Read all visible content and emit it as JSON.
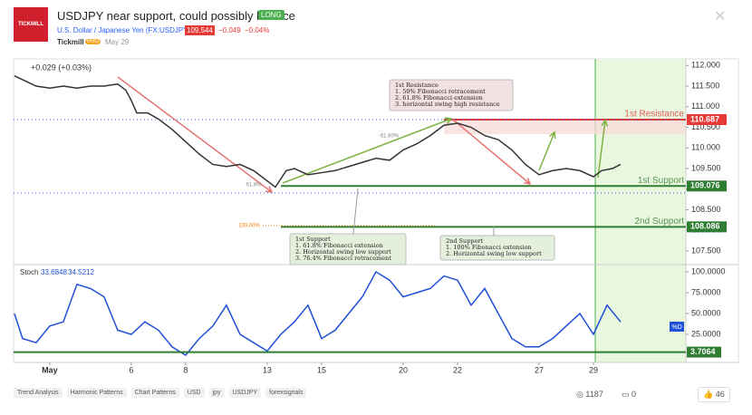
{
  "header": {
    "logo": "TICKMILL",
    "title": "USDJPY near support, could possibly bounce",
    "badge": "LONG",
    "symbol": "U.S. Dollar / Japanese Yen (FX:USDJPY)",
    "price": "109.544",
    "change": "−0.049",
    "change_pct": "−0.04%",
    "author": "Tickmill",
    "author_badge": "PRO",
    "date": "May 29"
  },
  "chart_data": [
    {
      "type": "line",
      "change_label": "+0.029 (+0.03%)",
      "color": "#333333",
      "x": [
        -1.3,
        -0.5,
        0,
        0.5,
        1,
        1.5,
        2,
        2.5,
        2.8,
        3,
        3.2,
        3.6,
        4,
        4.5,
        5,
        5.5,
        6,
        6.5,
        7,
        7.5,
        8,
        8.3,
        8.7,
        9,
        9.5,
        10,
        10.5,
        11,
        12,
        12.5,
        13,
        13.5,
        14,
        14.5,
        15,
        15.5,
        16,
        16.5,
        17,
        17.5,
        18,
        18.5,
        19,
        19.5,
        20,
        20.3,
        20.7,
        21
      ],
      "values": [
        111.75,
        111.5,
        111.45,
        111.5,
        111.45,
        111.5,
        111.5,
        111.55,
        111.4,
        111.15,
        110.85,
        110.85,
        110.7,
        110.45,
        110.15,
        109.85,
        109.6,
        109.55,
        109.6,
        109.45,
        109.2,
        109.05,
        109.45,
        109.5,
        109.35,
        109.4,
        109.45,
        109.55,
        109.75,
        109.7,
        109.95,
        110.1,
        110.3,
        110.55,
        110.6,
        110.5,
        110.3,
        110.2,
        109.95,
        109.6,
        109.35,
        109.45,
        109.5,
        109.45,
        109.3,
        109.45,
        109.5,
        109.6
      ],
      "xlim": [
        -1.33,
        23.4
      ],
      "ylim": [
        107.17,
        112.16
      ],
      "xticks": [
        {
          "value": 0,
          "label": "May"
        },
        {
          "value": 3,
          "label": "6"
        },
        {
          "value": 5,
          "label": "8"
        },
        {
          "value": 8,
          "label": "13"
        },
        {
          "value": 10,
          "label": "15"
        },
        {
          "value": 13,
          "label": "20"
        },
        {
          "value": 15,
          "label": "22"
        },
        {
          "value": 18,
          "label": "27"
        },
        {
          "value": 20,
          "label": "29"
        }
      ],
      "yticks": [
        {
          "value": 112,
          "label": "112.000"
        },
        {
          "value": 111.5,
          "label": "111.500"
        },
        {
          "value": 111,
          "label": "111.000"
        },
        {
          "value": 110.5,
          "label": "110.500"
        },
        {
          "value": 110,
          "label": "110.000"
        },
        {
          "value": 109.5,
          "label": "109.500"
        },
        {
          "value": 109,
          "label": "109.000"
        },
        {
          "value": 108.5,
          "label": "108.500"
        },
        {
          "value": 108,
          "label": "108.000"
        },
        {
          "value": 107.5,
          "label": "107.500"
        }
      ],
      "levels": [
        {
          "name": "1st Resistance",
          "value": 110.687,
          "value_label": "110.687",
          "color": "#e53935"
        },
        {
          "name": "1st Support",
          "value": 109.076,
          "value_label": "109.076",
          "color": "#2e7d32"
        },
        {
          "name": "2nd Support",
          "value": 108.086,
          "value_label": "108.086",
          "color": "#2e7d32"
        }
      ],
      "fib_labels": [
        "61.80%",
        "61.8%",
        "100.00%"
      ],
      "annotations": [
        {
          "lines": [
            "1st Resistance",
            "1. 50% Fibonacci retracement",
            "2. 61.8% Fibonacci extension",
            "3. horizontal swing high resistance"
          ]
        },
        {
          "lines": [
            "1st Support",
            "1. 61.8% Fibonacci extension",
            "2. Horizontal swing low support",
            "3. 76.4% Fibonacci retracement"
          ]
        },
        {
          "lines": [
            "2nd Support",
            "1. 100% Fibonacci extension",
            "2. Horizontal swing low support"
          ]
        }
      ]
    },
    {
      "type": "line",
      "title": "Stoch",
      "readings": [
        "33.6848",
        "34.5212"
      ],
      "series_name": "%D",
      "color": "#1e4fd6",
      "x": [
        -1.3,
        -1,
        -0.5,
        0,
        0.5,
        1,
        1.5,
        2,
        2.5,
        3,
        3.5,
        4,
        4.5,
        5,
        5.5,
        6,
        6.5,
        7,
        7.5,
        8,
        8.5,
        9,
        9.5,
        10,
        10.5,
        11,
        11.5,
        12,
        12.5,
        13,
        13.5,
        14,
        14.5,
        15,
        15.5,
        16,
        16.5,
        17,
        17.5,
        18,
        18.5,
        19,
        19.5,
        20,
        20.5,
        21
      ],
      "values": [
        50,
        20,
        15,
        35,
        40,
        85,
        80,
        70,
        30,
        25,
        40,
        30,
        10,
        0,
        20,
        35,
        60,
        25,
        15,
        5,
        25,
        40,
        60,
        20,
        30,
        50,
        70,
        100,
        90,
        70,
        75,
        80,
        95,
        90,
        60,
        80,
        50,
        20,
        10,
        10,
        20,
        35,
        50,
        25,
        60,
        40
      ],
      "ylim": [
        -8.7,
        107.6
      ],
      "yticks": [
        {
          "value": 100,
          "label": "100.0000"
        },
        {
          "value": 75,
          "label": "75.0000"
        },
        {
          "value": 50,
          "label": "50.0000"
        },
        {
          "value": 25,
          "label": "25.0000"
        }
      ],
      "level": {
        "value": 3.7064,
        "label": "3.7064",
        "color": "#2e7d32"
      }
    }
  ],
  "footer": {
    "tags": [
      "Trend Analysis",
      "Harmonic Patterns",
      "Chart Patterns",
      "USD",
      "jpy",
      "USDJPY",
      "forexsignals"
    ],
    "views": "1187",
    "comments": "0",
    "likes": "46"
  }
}
